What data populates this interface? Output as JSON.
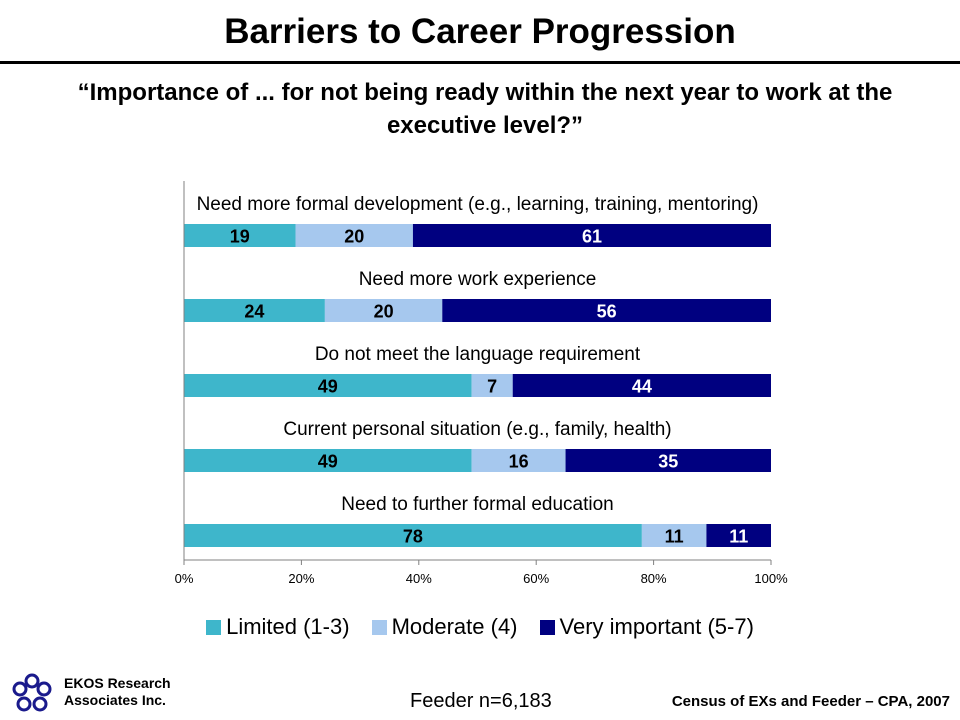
{
  "title": "Barriers to Career Progression",
  "subtitle": "“Importance of ... for not being ready within the next year to work at the executive level?”",
  "colors": {
    "limited": "#3EB6CB",
    "moderate": "#A6C8EE",
    "very_important": "#000080",
    "axis": "#808080"
  },
  "chart_data": {
    "type": "bar",
    "orientation": "horizontal",
    "stacked": true,
    "categories": [
      "Need more formal development (e.g., learning, training, mentoring)",
      "Need more work experience",
      "Do not meet the language requirement",
      "Current personal situation (e.g., family, health)",
      "Need to further formal education"
    ],
    "series": [
      {
        "name": "Limited (1-3)",
        "values": [
          19,
          24,
          49,
          49,
          78
        ]
      },
      {
        "name": "Moderate (4)",
        "values": [
          20,
          20,
          7,
          16,
          11
        ]
      },
      {
        "name": "Very important (5-7)",
        "values": [
          61,
          56,
          44,
          35,
          11
        ]
      }
    ],
    "xlim": [
      0,
      100
    ],
    "xticks": [
      "0%",
      "20%",
      "40%",
      "60%",
      "80%",
      "100%"
    ],
    "legend_position": "bottom",
    "grid": false
  },
  "footer": {
    "org_line1": "EKOS Research",
    "org_line2": "Associates Inc.",
    "sample": "Feeder n=6,183",
    "source": "Census of EXs and Feeder – CPA, 2007"
  }
}
